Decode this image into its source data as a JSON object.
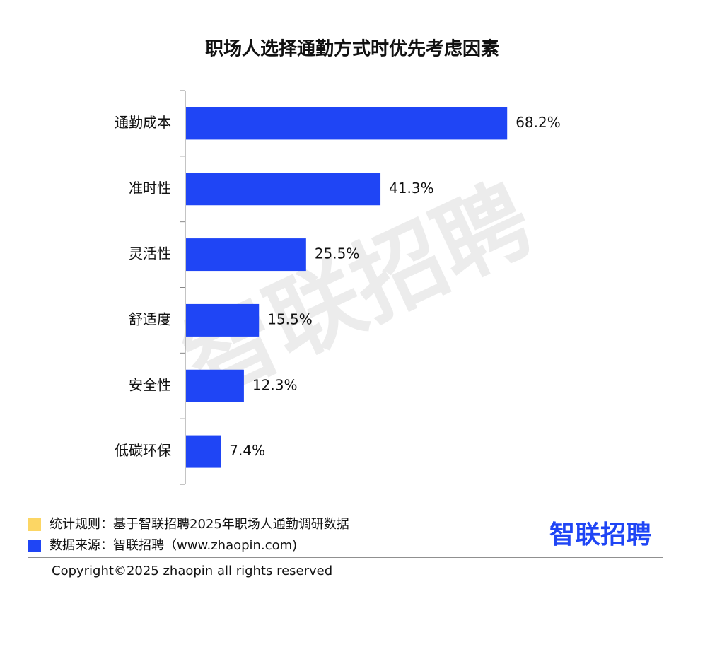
{
  "chart_data": {
    "type": "bar",
    "orientation": "horizontal",
    "title": "职场人选择通勤方式时优先考虑因素",
    "categories": [
      "通勤成本",
      "准时性",
      "灵活性",
      "舒适度",
      "安全性",
      "低碳环保"
    ],
    "values": [
      68.2,
      41.3,
      25.5,
      15.5,
      12.3,
      7.4
    ],
    "value_labels": [
      "68.2%",
      "41.3%",
      "25.5%",
      "15.5%",
      "12.3%",
      "7.4%"
    ],
    "color": "#1f45f5"
  },
  "footer": {
    "notes": [
      {
        "text": "统计规则：基于智联招聘2025年职场人通勤调研数据",
        "color": "#fcd664"
      },
      {
        "text": "数据来源：智联招聘（www.zhaopin.com)",
        "color": "#1f45f5"
      }
    ],
    "copyright": "Copyright©2025 zhaopin all rights reserved",
    "logo": "智联招聘"
  },
  "watermark": "智联招聘"
}
